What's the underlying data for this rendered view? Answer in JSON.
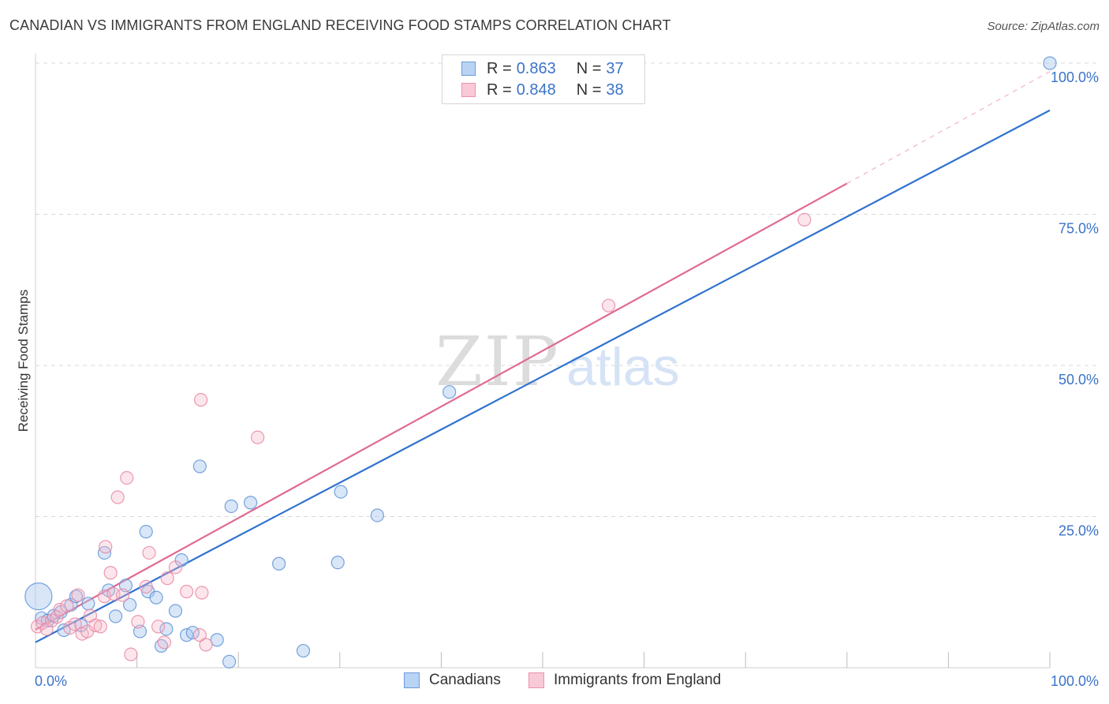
{
  "title": "CANADIAN VS IMMIGRANTS FROM ENGLAND RECEIVING FOOD STAMPS CORRELATION CHART",
  "source": "Source: ZipAtlas.com",
  "watermark": {
    "zip": "ZIP",
    "atlas": "atlas"
  },
  "colors": {
    "canadians_fill": "#a9c8f0",
    "canadians_stroke": "#5f93d6",
    "canadians_line": "#2f72cf",
    "england_fill": "#f6b7c9",
    "england_stroke": "#e887a5",
    "england_line": "#e06a92",
    "accent_text": "#3b73c9",
    "grid": "#d9d9d9"
  },
  "legend_top": {
    "rows": [
      {
        "r_label": "R =",
        "r_value": "0.863",
        "n_label": "N =",
        "n_value": "37",
        "series": "canadians"
      },
      {
        "r_label": "R =",
        "r_value": "0.848",
        "n_label": "N =",
        "n_value": "38",
        "series": "england"
      }
    ]
  },
  "legend_bottom": {
    "items": [
      {
        "label": "Canadians",
        "series": "canadians"
      },
      {
        "label": "Immigrants from England",
        "series": "england"
      }
    ]
  },
  "chart_data": {
    "type": "scatter",
    "title": "CANADIAN VS IMMIGRANTS FROM ENGLAND RECEIVING FOOD STAMPS CORRELATION CHART",
    "xlabel": "",
    "ylabel": "Receiving Food Stamps",
    "xlim": [
      0,
      100
    ],
    "ylim": [
      0,
      100
    ],
    "x_tick_labels": [
      {
        "value": 0,
        "label": "0.0%"
      },
      {
        "value": 100,
        "label": "100.0%"
      }
    ],
    "y_tick_labels": [
      {
        "value": 25,
        "label": "25.0%"
      },
      {
        "value": 50,
        "label": "50.0%"
      },
      {
        "value": 75,
        "label": "75.0%"
      },
      {
        "value": 100,
        "label": "100.0%"
      }
    ],
    "grid": true,
    "legend": "top-center",
    "series": [
      {
        "name": "Canadians",
        "key": "canadians",
        "R": 0.863,
        "N": 37,
        "trendline": {
          "x0": 0,
          "y0": 4.2,
          "x1": 100,
          "y1": 92.2
        },
        "points": [
          {
            "x": 0.3,
            "y": 11.8,
            "big": true
          },
          {
            "x": 0.6,
            "y": 8.2
          },
          {
            "x": 1.2,
            "y": 7.8
          },
          {
            "x": 1.8,
            "y": 8.6
          },
          {
            "x": 2.5,
            "y": 9.2
          },
          {
            "x": 2.8,
            "y": 6.2
          },
          {
            "x": 3.5,
            "y": 10.4
          },
          {
            "x": 4.0,
            "y": 11.8
          },
          {
            "x": 4.5,
            "y": 7.0
          },
          {
            "x": 5.2,
            "y": 10.6
          },
          {
            "x": 6.8,
            "y": 19.0
          },
          {
            "x": 7.2,
            "y": 12.8
          },
          {
            "x": 7.9,
            "y": 8.5
          },
          {
            "x": 8.9,
            "y": 13.6
          },
          {
            "x": 9.3,
            "y": 10.4
          },
          {
            "x": 10.3,
            "y": 6.0
          },
          {
            "x": 10.9,
            "y": 22.5
          },
          {
            "x": 11.1,
            "y": 12.6
          },
          {
            "x": 11.9,
            "y": 11.6
          },
          {
            "x": 12.4,
            "y": 3.6
          },
          {
            "x": 12.9,
            "y": 6.4
          },
          {
            "x": 13.8,
            "y": 9.4
          },
          {
            "x": 14.4,
            "y": 17.8
          },
          {
            "x": 14.9,
            "y": 5.4
          },
          {
            "x": 15.5,
            "y": 5.8
          },
          {
            "x": 16.2,
            "y": 33.3
          },
          {
            "x": 17.9,
            "y": 4.6
          },
          {
            "x": 19.3,
            "y": 26.7
          },
          {
            "x": 21.2,
            "y": 27.3
          },
          {
            "x": 19.1,
            "y": 1.0
          },
          {
            "x": 24.0,
            "y": 17.2
          },
          {
            "x": 26.4,
            "y": 2.8
          },
          {
            "x": 29.8,
            "y": 17.4
          },
          {
            "x": 30.1,
            "y": 29.1
          },
          {
            "x": 33.7,
            "y": 25.2
          },
          {
            "x": 40.8,
            "y": 45.6
          },
          {
            "x": 100.0,
            "y": 100.0
          }
        ]
      },
      {
        "name": "Immigrants from England",
        "key": "england",
        "R": 0.848,
        "N": 38,
        "trendline": {
          "x0": 0,
          "y0": 6.3,
          "x1": 80,
          "y1": 80.1,
          "dashed_to": {
            "x": 100,
            "y": 98.6
          }
        },
        "points": [
          {
            "x": 0.2,
            "y": 6.8
          },
          {
            "x": 0.7,
            "y": 7.4
          },
          {
            "x": 1.1,
            "y": 6.4
          },
          {
            "x": 1.6,
            "y": 7.8
          },
          {
            "x": 2.1,
            "y": 8.4
          },
          {
            "x": 2.4,
            "y": 9.6
          },
          {
            "x": 3.1,
            "y": 10.2
          },
          {
            "x": 3.4,
            "y": 6.6
          },
          {
            "x": 3.9,
            "y": 7.2
          },
          {
            "x": 4.2,
            "y": 12.0
          },
          {
            "x": 4.6,
            "y": 5.6
          },
          {
            "x": 5.1,
            "y": 6.0
          },
          {
            "x": 5.4,
            "y": 8.6
          },
          {
            "x": 5.9,
            "y": 7.0
          },
          {
            "x": 6.4,
            "y": 6.8
          },
          {
            "x": 6.8,
            "y": 11.8
          },
          {
            "x": 6.9,
            "y": 20.0
          },
          {
            "x": 7.4,
            "y": 15.7
          },
          {
            "x": 7.7,
            "y": 12.2
          },
          {
            "x": 8.1,
            "y": 28.2
          },
          {
            "x": 8.6,
            "y": 12.0
          },
          {
            "x": 9.0,
            "y": 31.4
          },
          {
            "x": 9.4,
            "y": 2.2
          },
          {
            "x": 10.1,
            "y": 7.6
          },
          {
            "x": 10.9,
            "y": 13.4
          },
          {
            "x": 11.2,
            "y": 19.0
          },
          {
            "x": 12.7,
            "y": 4.2
          },
          {
            "x": 13.0,
            "y": 14.8
          },
          {
            "x": 13.8,
            "y": 16.6
          },
          {
            "x": 14.9,
            "y": 12.6
          },
          {
            "x": 16.2,
            "y": 5.4
          },
          {
            "x": 12.1,
            "y": 6.8
          },
          {
            "x": 16.3,
            "y": 44.3
          },
          {
            "x": 16.4,
            "y": 12.4
          },
          {
            "x": 16.8,
            "y": 3.8
          },
          {
            "x": 21.9,
            "y": 38.1
          },
          {
            "x": 56.5,
            "y": 59.9
          },
          {
            "x": 75.8,
            "y": 74.1
          }
        ]
      }
    ]
  }
}
